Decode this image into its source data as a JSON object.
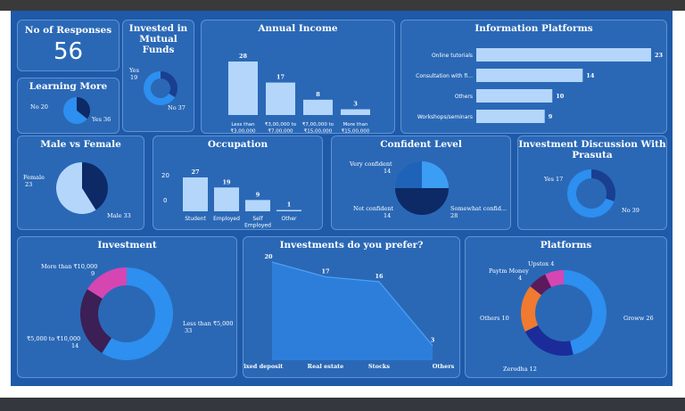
{
  "responses": {
    "title": "No of Responses",
    "value": "56"
  },
  "mutual_funds": {
    "title": [
      "Invested in",
      "Mutual Funds"
    ],
    "labels": [
      "Yes",
      "19",
      "No 37"
    ]
  },
  "learning": {
    "title": "Learning More",
    "labels": [
      "No 20",
      "Yes 36"
    ]
  },
  "gender": {
    "title": "Male vs Female",
    "labels": [
      "Female",
      "23",
      "Male 33"
    ]
  },
  "confidence": {
    "title": "Confident Level",
    "labels": [
      "Very confident",
      "14",
      "Not confident",
      "14",
      "Somewhat confid...",
      "28"
    ]
  },
  "discussion": {
    "title": [
      "Investment Discussion With",
      "Prasuta"
    ],
    "labels": [
      "Yes 17",
      "No 39"
    ]
  },
  "investment": {
    "title": "Investment",
    "labels": [
      "More than ₹10,000",
      "9",
      "Less than ₹5,000",
      "33",
      "₹5,000 to ₹10,000",
      "14"
    ]
  },
  "platforms": {
    "title": "Platforms",
    "labels": [
      "Upstox 4",
      "Paytm Money",
      "4",
      "Others 10",
      "Groww 26",
      "Zerodha 12"
    ]
  },
  "chart_data": [
    {
      "type": "pie",
      "title": "Invested in Mutual Funds",
      "categories": [
        "Yes",
        "No"
      ],
      "values": [
        19,
        37
      ],
      "colors": [
        "#1a3f90",
        "#2d8fef"
      ]
    },
    {
      "type": "pie",
      "title": "Learning More",
      "categories": [
        "No",
        "Yes"
      ],
      "values": [
        20,
        36
      ],
      "colors": [
        "#0d2a66",
        "#2d8fef"
      ]
    },
    {
      "type": "bar",
      "title": "Annual Income",
      "categories": [
        [
          "Less than",
          "₹3,00,000"
        ],
        [
          "₹3,00,000 to",
          "₹7,00,000"
        ],
        [
          "₹7,00,000 to",
          "₹15,00,000"
        ],
        [
          "More than",
          "₹15,00,000"
        ]
      ],
      "values": [
        28,
        17,
        8,
        3
      ],
      "bar_color": "#b4d6fb"
    },
    {
      "type": "bar",
      "orientation": "horizontal",
      "title": "Information Platforms",
      "categories": [
        "Online tutorials",
        "Consultation with fi...",
        "Others",
        "Workshops/seminars"
      ],
      "values": [
        23,
        14,
        10,
        9
      ],
      "bar_color": "#b4d6fb"
    },
    {
      "type": "pie",
      "title": "Male vs Female",
      "categories": [
        "Female",
        "Male"
      ],
      "values": [
        23,
        33
      ],
      "colors": [
        "#0d2a66",
        "#b4d6fb"
      ]
    },
    {
      "type": "bar",
      "title": "Occupation",
      "categories": [
        "Student",
        "Employed",
        [
          "Self",
          "Employed"
        ],
        "Other"
      ],
      "values": [
        27,
        19,
        9,
        1
      ],
      "yticks": [
        0,
        20
      ],
      "bar_color": "#b4d6fb"
    },
    {
      "type": "pie",
      "title": "Confident Level",
      "categories": [
        "Very confident",
        "Somewhat confid...",
        "Not confident"
      ],
      "values": [
        14,
        28,
        14
      ],
      "colors": [
        "#3b9df3",
        "#0d2a66",
        "#1f63b8"
      ]
    },
    {
      "type": "pie",
      "title": "Investment Discussion With Prasuta",
      "categories": [
        "Yes",
        "No"
      ],
      "values": [
        17,
        39
      ],
      "colors": [
        "#1a3f90",
        "#2d8fef"
      ]
    },
    {
      "type": "pie",
      "title": "Investment",
      "categories": [
        "Less than ₹5,000",
        "₹5,000 to ₹10,000",
        "More than ₹10,000"
      ],
      "values": [
        33,
        14,
        9
      ],
      "colors": [
        "#2d8fef",
        "#3b1f55",
        "#d646b3"
      ]
    },
    {
      "type": "area",
      "title": "Investments do you prefer?",
      "categories": [
        "Fixed deposit",
        "Real estate",
        "Stocks",
        "Others"
      ],
      "values": [
        20,
        17,
        16,
        3
      ],
      "color": "#2f86e6"
    },
    {
      "type": "pie",
      "title": "Platforms",
      "categories": [
        "Groww",
        "Zerodha",
        "Others",
        "Paytm Money",
        "Upstox"
      ],
      "values": [
        26,
        12,
        10,
        4,
        4
      ],
      "colors": [
        "#2d8fef",
        "#1b2c9a",
        "#ef7a30",
        "#5b1a5c",
        "#d646b3"
      ]
    }
  ]
}
